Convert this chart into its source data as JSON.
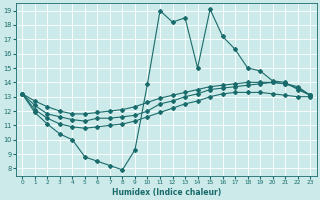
{
  "xlabel": "Humidex (Indice chaleur)",
  "bg_color": "#cceaea",
  "line_color": "#1a6b6b",
  "grid_color": "#b0d8d8",
  "xlim": [
    -0.5,
    23.5
  ],
  "ylim": [
    7.5,
    19.5
  ],
  "xticks": [
    0,
    1,
    2,
    3,
    4,
    5,
    6,
    7,
    8,
    9,
    10,
    11,
    12,
    13,
    14,
    15,
    16,
    17,
    18,
    19,
    20,
    21,
    22,
    23
  ],
  "yticks": [
    8,
    9,
    10,
    11,
    12,
    13,
    14,
    15,
    16,
    17,
    18,
    19
  ],
  "curve1": [
    [
      0,
      13.2
    ],
    [
      1,
      11.9
    ],
    [
      2,
      11.1
    ],
    [
      3,
      10.4
    ],
    [
      4,
      10.0
    ],
    [
      5,
      8.8
    ],
    [
      6,
      8.5
    ],
    [
      7,
      8.2
    ],
    [
      8,
      7.9
    ],
    [
      9,
      9.3
    ],
    [
      10,
      13.9
    ],
    [
      11,
      19.0
    ],
    [
      12,
      18.2
    ],
    [
      13,
      18.5
    ],
    [
      14,
      15.0
    ],
    [
      15,
      19.1
    ],
    [
      16,
      17.2
    ],
    [
      17,
      16.3
    ],
    [
      18,
      15.0
    ],
    [
      19,
      14.8
    ],
    [
      20,
      14.1
    ],
    [
      21,
      14.0
    ],
    [
      22,
      13.5
    ],
    [
      23,
      13.1
    ]
  ],
  "curve2": [
    [
      0,
      13.2
    ],
    [
      1,
      12.4
    ],
    [
      2,
      11.8
    ],
    [
      3,
      11.6
    ],
    [
      4,
      11.4
    ],
    [
      5,
      11.3
    ],
    [
      6,
      11.5
    ],
    [
      7,
      11.5
    ],
    [
      8,
      11.6
    ],
    [
      9,
      11.7
    ],
    [
      10,
      12.0
    ],
    [
      11,
      12.5
    ],
    [
      12,
      12.7
    ],
    [
      13,
      13.0
    ],
    [
      14,
      13.2
    ],
    [
      15,
      13.5
    ],
    [
      16,
      13.6
    ],
    [
      17,
      13.7
    ],
    [
      18,
      13.8
    ],
    [
      19,
      13.9
    ],
    [
      20,
      14.0
    ],
    [
      21,
      13.9
    ],
    [
      22,
      13.6
    ],
    [
      23,
      13.1
    ]
  ],
  "curve3": [
    [
      0,
      13.2
    ],
    [
      1,
      12.1
    ],
    [
      2,
      11.5
    ],
    [
      3,
      11.1
    ],
    [
      4,
      10.9
    ],
    [
      5,
      10.8
    ],
    [
      6,
      10.9
    ],
    [
      7,
      11.0
    ],
    [
      8,
      11.1
    ],
    [
      9,
      11.3
    ],
    [
      10,
      11.6
    ],
    [
      11,
      11.9
    ],
    [
      12,
      12.2
    ],
    [
      13,
      12.5
    ],
    [
      14,
      12.7
    ],
    [
      15,
      13.0
    ],
    [
      16,
      13.2
    ],
    [
      17,
      13.3
    ],
    [
      18,
      13.3
    ],
    [
      19,
      13.3
    ],
    [
      20,
      13.2
    ],
    [
      21,
      13.1
    ],
    [
      22,
      13.0
    ],
    [
      23,
      13.0
    ]
  ],
  "curve4": [
    [
      0,
      13.2
    ],
    [
      1,
      12.7
    ],
    [
      2,
      12.3
    ],
    [
      3,
      12.0
    ],
    [
      4,
      11.8
    ],
    [
      5,
      11.8
    ],
    [
      6,
      11.9
    ],
    [
      7,
      12.0
    ],
    [
      8,
      12.1
    ],
    [
      9,
      12.3
    ],
    [
      10,
      12.6
    ],
    [
      11,
      12.9
    ],
    [
      12,
      13.1
    ],
    [
      13,
      13.3
    ],
    [
      14,
      13.5
    ],
    [
      15,
      13.7
    ],
    [
      16,
      13.8
    ],
    [
      17,
      13.9
    ],
    [
      18,
      14.0
    ],
    [
      19,
      14.0
    ],
    [
      20,
      14.0
    ],
    [
      21,
      13.9
    ],
    [
      22,
      13.7
    ],
    [
      23,
      13.1
    ]
  ]
}
